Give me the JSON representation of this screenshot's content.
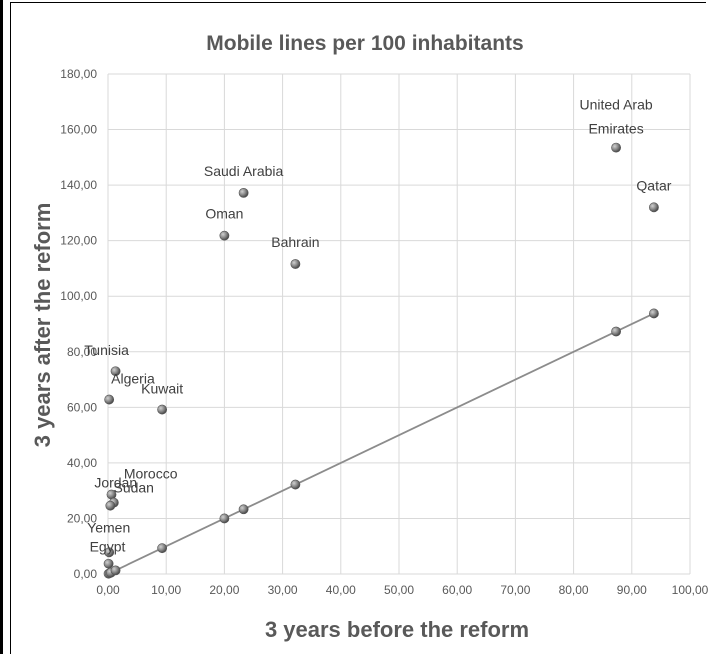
{
  "chart_data": {
    "type": "scatter",
    "title": "Mobile lines per 100 inhabitants",
    "xlabel": "3 years before the reform",
    "ylabel": "3 years  after the reform",
    "xlim": [
      0,
      100
    ],
    "ylim": [
      0,
      180
    ],
    "x_ticks": [
      "0,00",
      "10,00",
      "20,00",
      "30,00",
      "40,00",
      "50,00",
      "60,00",
      "70,00",
      "80,00",
      "90,00",
      "100,00"
    ],
    "y_ticks": [
      "0,00",
      "20,00",
      "40,00",
      "60,00",
      "80,00",
      "100,00",
      "120,00",
      "140,00",
      "160,00",
      "180,00"
    ],
    "grid": true,
    "points": [
      {
        "label": "United Arab Emirates",
        "x": 87.3,
        "y": 153.5
      },
      {
        "label": "Qatar",
        "x": 93.8,
        "y": 132.0
      },
      {
        "label": "Saudi Arabia",
        "x": 23.3,
        "y": 137.2
      },
      {
        "label": "Oman",
        "x": 20.0,
        "y": 121.8
      },
      {
        "label": "Bahrain",
        "x": 32.2,
        "y": 111.6
      },
      {
        "label": "Tunisia",
        "x": 1.3,
        "y": 73.0
      },
      {
        "label": "Algeria",
        "x": 0.2,
        "y": 62.8
      },
      {
        "label": "Kuwait",
        "x": 9.3,
        "y": 59.2
      },
      {
        "label": "Sudan",
        "x": 0.6,
        "y": 28.6
      },
      {
        "label": "Morocco",
        "x": 1.0,
        "y": 25.7
      },
      {
        "label": "Jordan",
        "x": 0.4,
        "y": 24.6
      },
      {
        "label": "Yemen",
        "x": 0.2,
        "y": 7.8
      },
      {
        "label": "Egypt",
        "x": 0.1,
        "y": 3.7
      }
    ],
    "unlabeled_points": [
      {
        "x": 0.1,
        "y": 0.1
      },
      {
        "x": 0.3,
        "y": 0.3
      },
      {
        "x": 0.5,
        "y": 0.5
      },
      {
        "x": 1.3,
        "y": 1.3
      },
      {
        "x": 9.3,
        "y": 9.3
      },
      {
        "x": 20.0,
        "y": 20.0
      },
      {
        "x": 23.3,
        "y": 23.3
      },
      {
        "x": 32.2,
        "y": 32.2
      },
      {
        "x": 87.3,
        "y": 87.3
      },
      {
        "x": 93.8,
        "y": 93.8
      }
    ],
    "reference_line": {
      "x": [
        0,
        93.8
      ],
      "y": [
        0,
        93.8
      ]
    }
  }
}
